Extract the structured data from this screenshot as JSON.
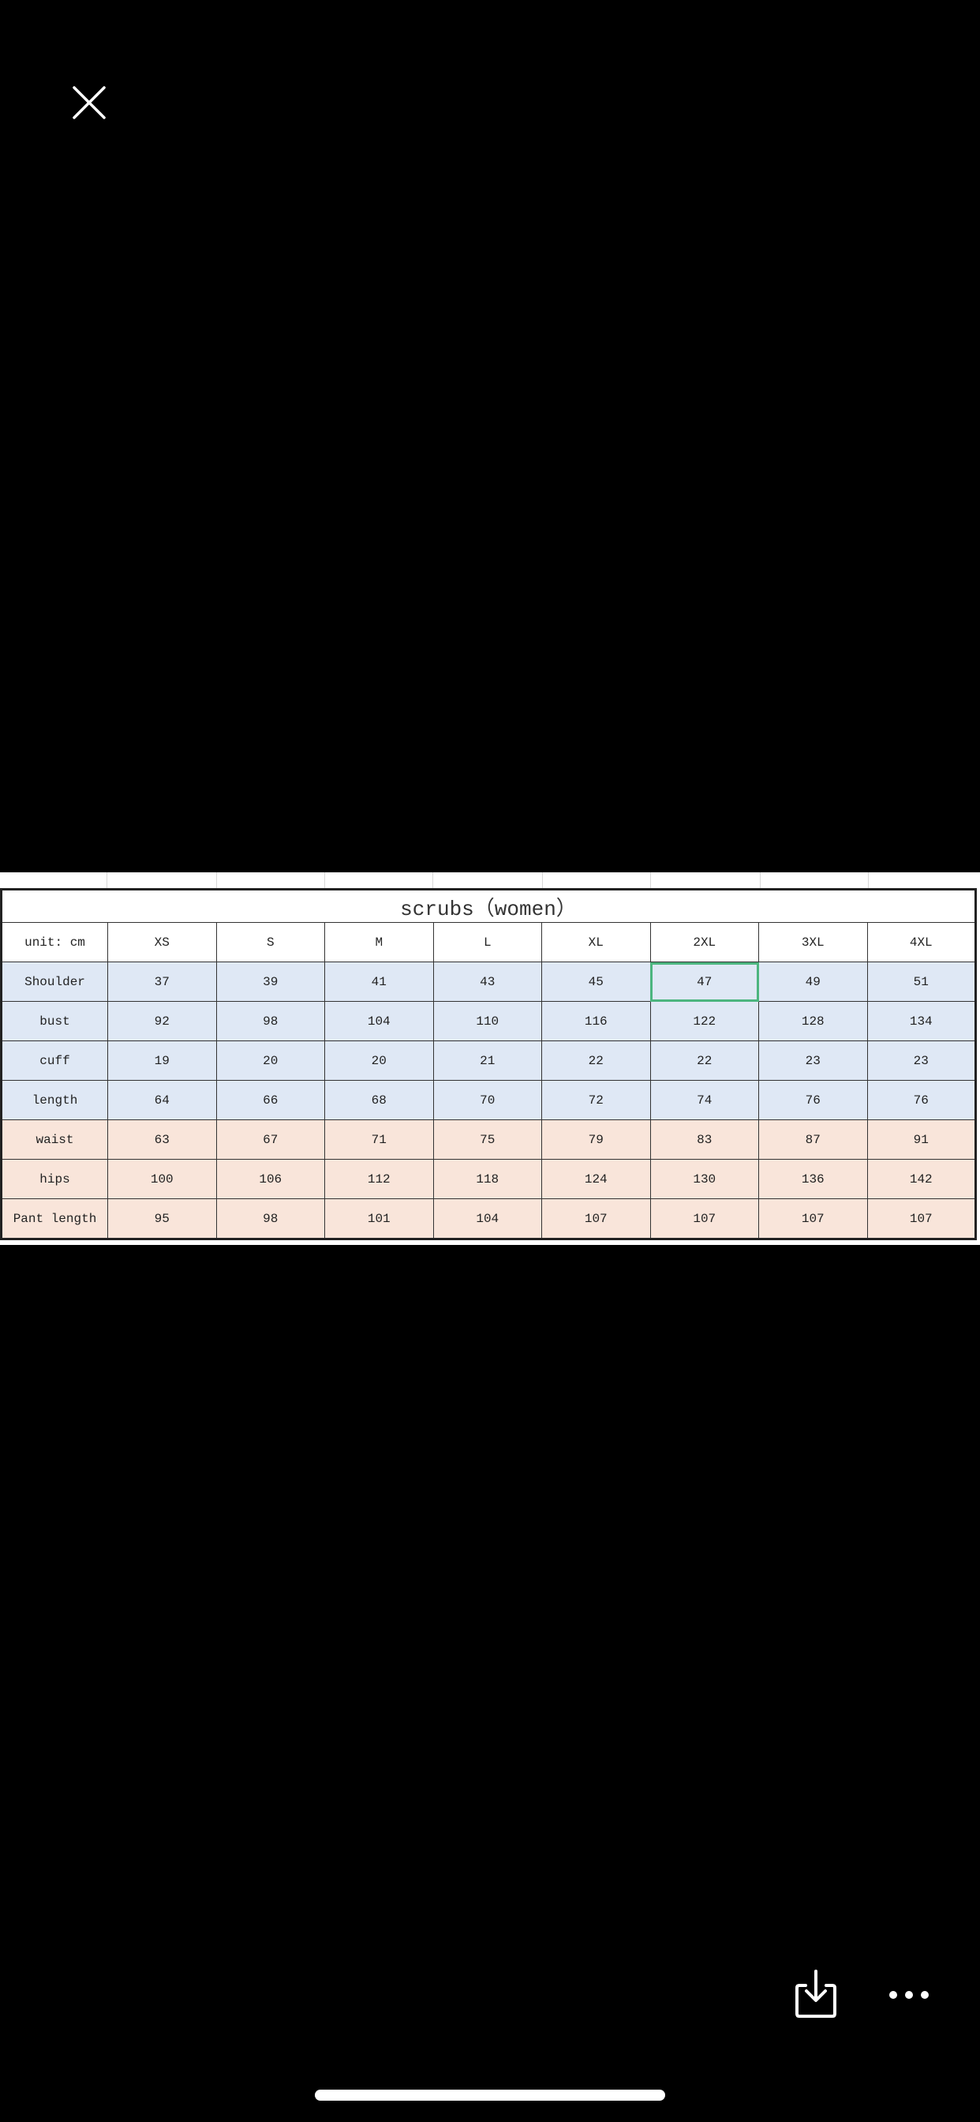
{
  "viewer": {
    "close_icon": "close-x-icon",
    "download_icon": "download-icon",
    "more_icon": "ellipsis-icon"
  },
  "table": {
    "title": "scrubs（women）",
    "unit_label": "unit: cm",
    "sizes": [
      "XS",
      "S",
      "M",
      "L",
      "XL",
      "2XL",
      "3XL",
      "4XL"
    ],
    "rows": [
      {
        "label": "Shoulder",
        "values": [
          "37",
          "39",
          "41",
          "43",
          "45",
          "47",
          "49",
          "51"
        ],
        "group": "top"
      },
      {
        "label": "bust",
        "values": [
          "92",
          "98",
          "104",
          "110",
          "116",
          "122",
          "128",
          "134"
        ],
        "group": "top"
      },
      {
        "label": "cuff",
        "values": [
          "19",
          "20",
          "20",
          "21",
          "22",
          "22",
          "23",
          "23"
        ],
        "group": "top"
      },
      {
        "label": "length",
        "values": [
          "64",
          "66",
          "68",
          "70",
          "72",
          "74",
          "76",
          "76"
        ],
        "group": "top"
      },
      {
        "label": "waist",
        "values": [
          "63",
          "67",
          "71",
          "75",
          "79",
          "83",
          "87",
          "91"
        ],
        "group": "pants"
      },
      {
        "label": "hips",
        "values": [
          "100",
          "106",
          "112",
          "118",
          "124",
          "130",
          "136",
          "142"
        ],
        "group": "pants"
      },
      {
        "label": "Pant length",
        "values": [
          "95",
          "98",
          "101",
          "104",
          "107",
          "107",
          "107",
          "107"
        ],
        "group": "pants"
      }
    ],
    "selected_cell": {
      "row": "Shoulder",
      "size": "2XL"
    },
    "colors": {
      "top_rows": "#dfe8f5",
      "pants_rows": "#f9e5da",
      "selection": "#4cb57f"
    }
  }
}
